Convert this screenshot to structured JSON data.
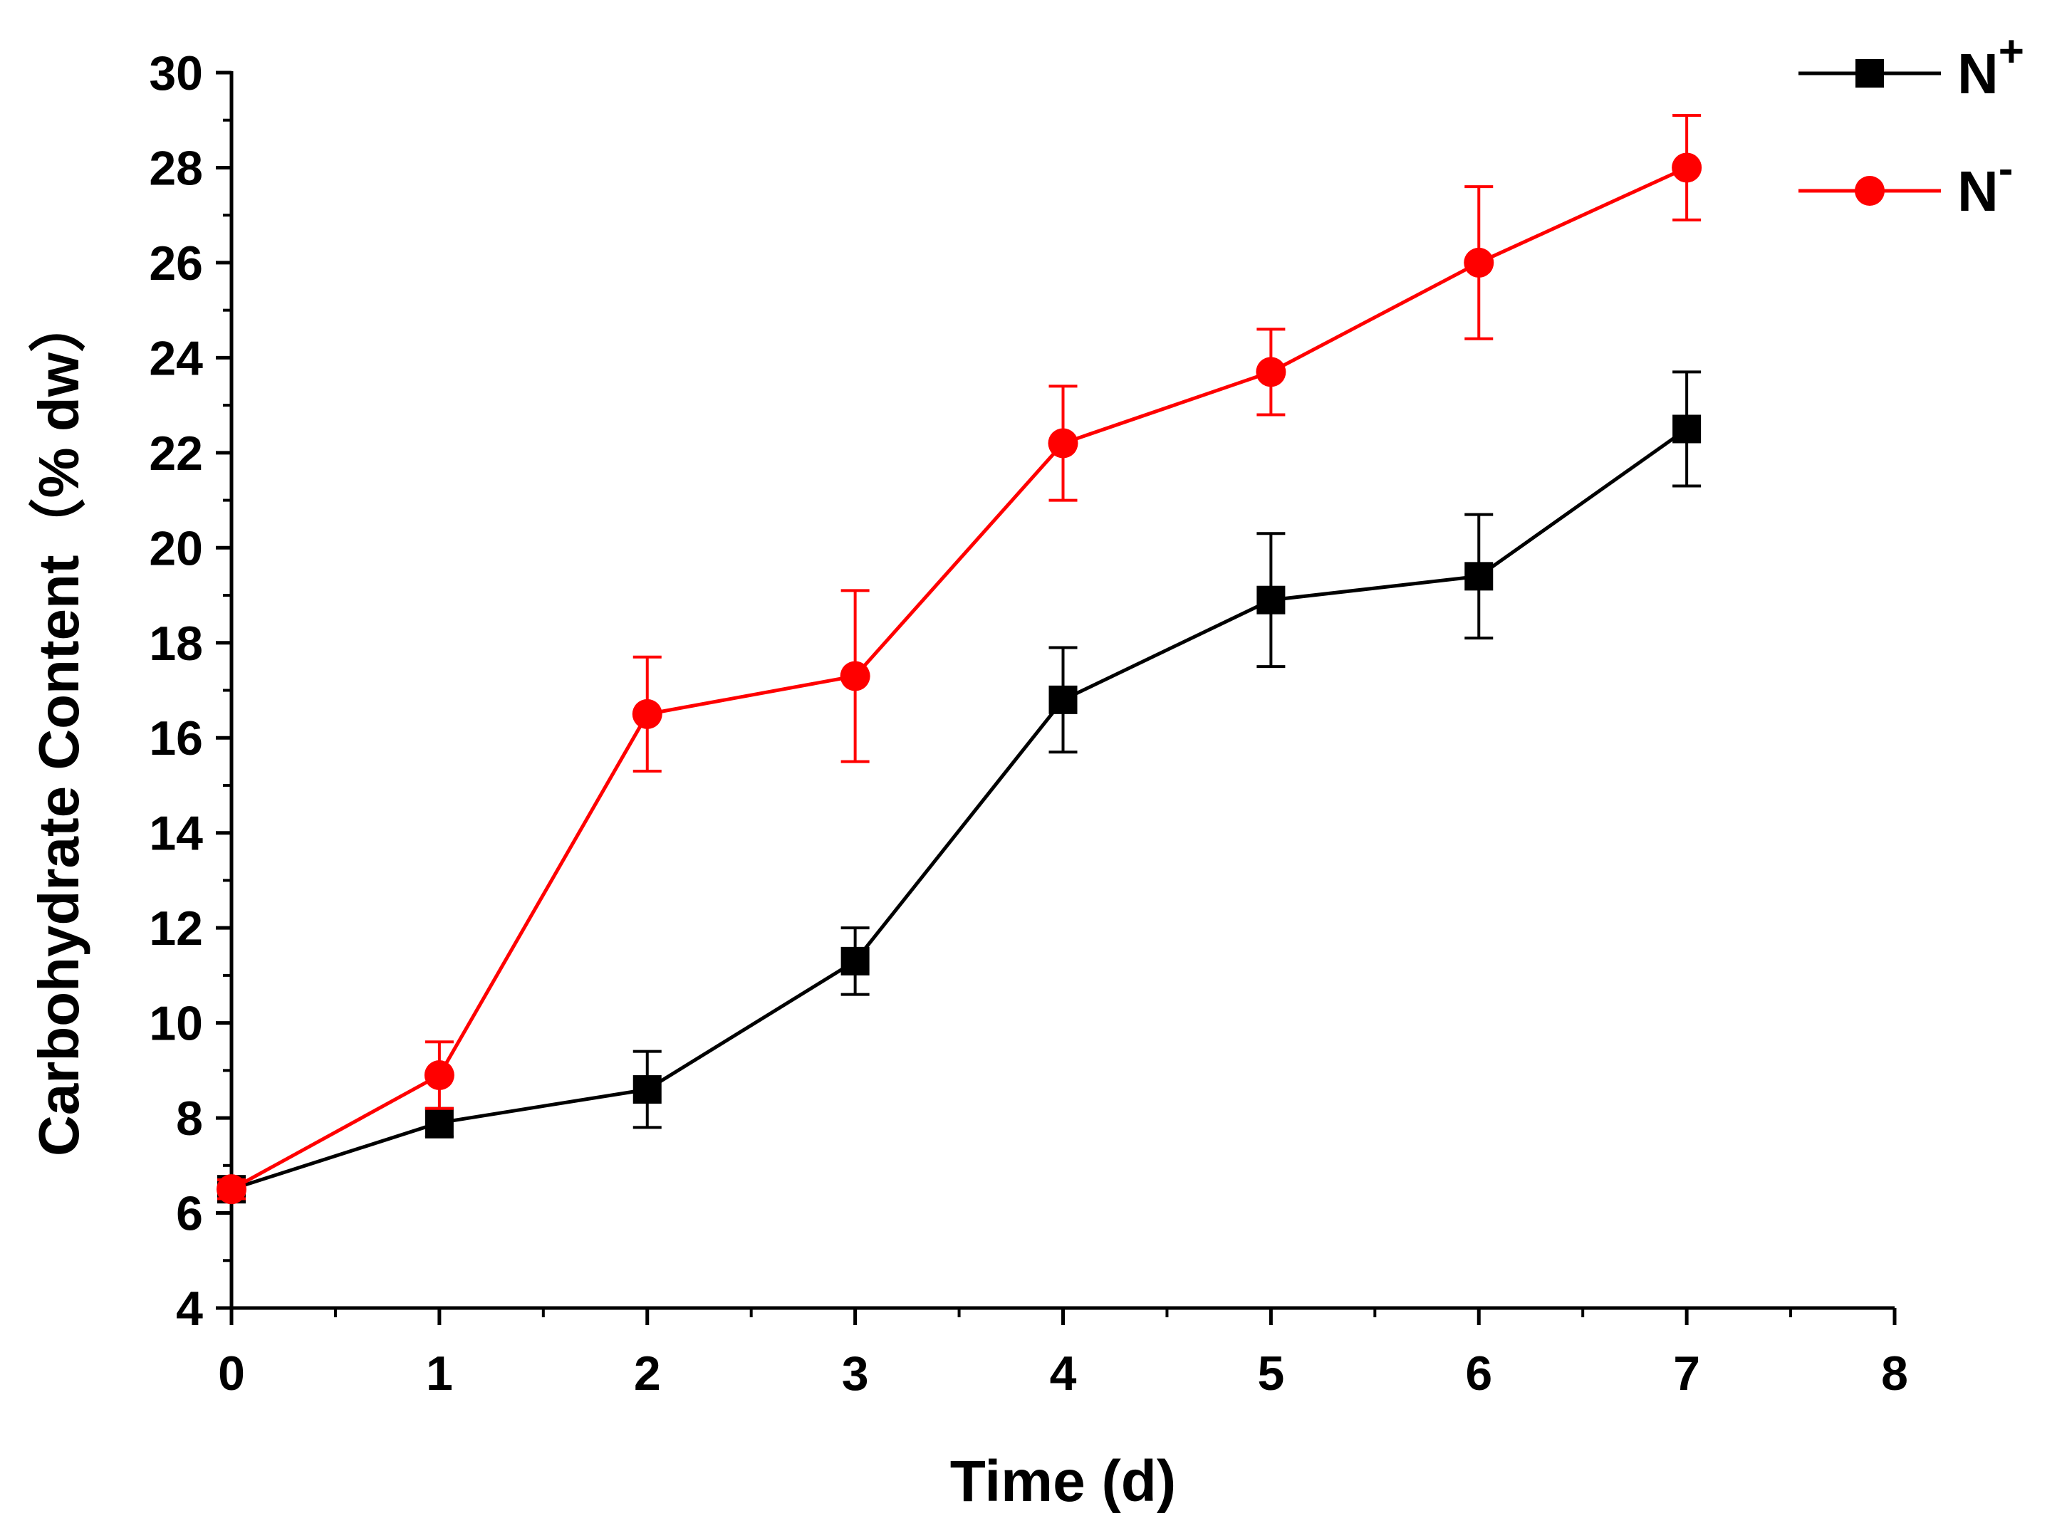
{
  "chart_data": {
    "type": "line",
    "title": "",
    "xlabel": "Time (d)",
    "ylabel": "Carbohydrate Content（% dw）",
    "xlim": [
      0,
      8
    ],
    "ylim": [
      4,
      30
    ],
    "xticks": [
      0,
      1,
      2,
      3,
      4,
      5,
      6,
      7,
      8
    ],
    "yticks": [
      4,
      6,
      8,
      10,
      12,
      14,
      16,
      18,
      20,
      22,
      24,
      26,
      28,
      30
    ],
    "x_minor_step": 0.5,
    "y_minor_step": 1,
    "grid": false,
    "legend_position": "top-right",
    "x": [
      0,
      1,
      2,
      3,
      4,
      5,
      6,
      7
    ],
    "series": [
      {
        "name": "N+",
        "legend_base": "N",
        "legend_sup": "+",
        "color": "#000000",
        "marker": "square",
        "values": [
          6.5,
          7.9,
          8.6,
          11.3,
          16.8,
          18.9,
          19.4,
          22.5
        ],
        "errors": [
          0.2,
          0.3,
          0.8,
          0.7,
          1.1,
          1.4,
          1.3,
          1.2
        ]
      },
      {
        "name": "N-",
        "legend_base": "N",
        "legend_sup": "-",
        "color": "#ff0000",
        "marker": "circle",
        "values": [
          6.5,
          8.9,
          16.5,
          17.3,
          22.2,
          23.7,
          26.0,
          28.0
        ],
        "errors": [
          0.2,
          0.7,
          1.2,
          1.8,
          1.2,
          0.9,
          1.6,
          1.1
        ]
      }
    ]
  }
}
